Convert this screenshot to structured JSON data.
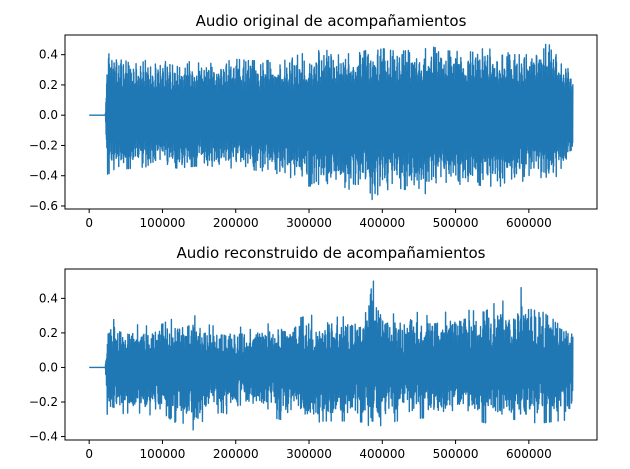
{
  "chart_data": [
    {
      "type": "line",
      "title": "Audio original de acompañamientos",
      "xlabel": "",
      "ylabel": "",
      "xlim": [
        -33000,
        693000
      ],
      "ylim": [
        -0.62,
        0.53
      ],
      "xticks": [
        0,
        100000,
        200000,
        300000,
        400000,
        500000,
        600000
      ],
      "yticks": [
        -0.6,
        -0.4,
        -0.2,
        0.0,
        0.2,
        0.4
      ],
      "ytick_labels": [
        "−0.6",
        "−0.4",
        "−0.2",
        "0.0",
        "0.2",
        "0.4"
      ],
      "grid": false,
      "color": "#1f77b4",
      "series": [
        {
          "x": [
            0,
            22000,
            25000,
            40000,
            60000,
            80000,
            100000,
            120000,
            140000,
            160000,
            180000,
            200000,
            220000,
            240000,
            260000,
            280000,
            300000,
            320000,
            340000,
            360000,
            380000,
            383000,
            400000,
            420000,
            440000,
            460000,
            465000,
            480000,
            500000,
            520000,
            540000,
            560000,
            580000,
            600000,
            620000,
            625000,
            640000,
            660000
          ],
          "upper": [
            0,
            0,
            0.42,
            0.38,
            0.37,
            0.36,
            0.35,
            0.37,
            0.35,
            0.34,
            0.35,
            0.37,
            0.36,
            0.36,
            0.37,
            0.39,
            0.42,
            0.43,
            0.42,
            0.4,
            0.43,
            0.41,
            0.44,
            0.42,
            0.43,
            0.44,
            0.46,
            0.43,
            0.42,
            0.43,
            0.44,
            0.43,
            0.4,
            0.4,
            0.45,
            0.48,
            0.4,
            0.28
          ],
          "lower": [
            0,
            0,
            -0.39,
            -0.36,
            -0.35,
            -0.34,
            -0.33,
            -0.35,
            -0.34,
            -0.33,
            -0.35,
            -0.36,
            -0.36,
            -0.37,
            -0.39,
            -0.42,
            -0.47,
            -0.45,
            -0.46,
            -0.5,
            -0.48,
            -0.57,
            -0.5,
            -0.48,
            -0.5,
            -0.52,
            -0.49,
            -0.5,
            -0.46,
            -0.45,
            -0.47,
            -0.47,
            -0.46,
            -0.42,
            -0.44,
            -0.43,
            -0.4,
            -0.3
          ]
        }
      ]
    },
    {
      "type": "line",
      "title": "Audio reconstruido de acompañamientos",
      "xlabel": "",
      "ylabel": "",
      "xlim": [
        -33000,
        693000
      ],
      "ylim": [
        -0.42,
        0.57
      ],
      "xticks": [
        0,
        100000,
        200000,
        300000,
        400000,
        500000,
        600000
      ],
      "yticks": [
        -0.4,
        -0.2,
        0.0,
        0.2,
        0.4
      ],
      "ytick_labels": [
        "−0.4",
        "−0.2",
        "0.0",
        "0.2",
        "0.4"
      ],
      "grid": false,
      "color": "#1f77b4",
      "series": [
        {
          "x": [
            0,
            22000,
            25000,
            40000,
            60000,
            80000,
            100000,
            110000,
            120000,
            145000,
            160000,
            180000,
            200000,
            220000,
            240000,
            260000,
            280000,
            300000,
            320000,
            340000,
            360000,
            380000,
            384000,
            400000,
            420000,
            440000,
            460000,
            480000,
            500000,
            520000,
            540000,
            560000,
            580000,
            590000,
            600000,
            620000,
            640000,
            660000
          ],
          "upper": [
            0,
            0,
            0.3,
            0.26,
            0.25,
            0.24,
            0.25,
            0.28,
            0.27,
            0.3,
            0.25,
            0.23,
            0.24,
            0.22,
            0.25,
            0.26,
            0.28,
            0.3,
            0.31,
            0.29,
            0.3,
            0.32,
            0.55,
            0.34,
            0.3,
            0.33,
            0.3,
            0.31,
            0.34,
            0.33,
            0.32,
            0.4,
            0.33,
            0.47,
            0.4,
            0.38,
            0.3,
            0.25
          ],
          "lower": [
            0,
            0,
            -0.31,
            -0.27,
            -0.26,
            -0.27,
            -0.3,
            -0.36,
            -0.3,
            -0.37,
            -0.28,
            -0.26,
            -0.28,
            -0.27,
            -0.28,
            -0.3,
            -0.32,
            -0.33,
            -0.31,
            -0.31,
            -0.31,
            -0.32,
            -0.38,
            -0.33,
            -0.31,
            -0.3,
            -0.29,
            -0.3,
            -0.31,
            -0.3,
            -0.32,
            -0.33,
            -0.3,
            -0.33,
            -0.32,
            -0.32,
            -0.31,
            -0.3
          ]
        }
      ]
    }
  ]
}
